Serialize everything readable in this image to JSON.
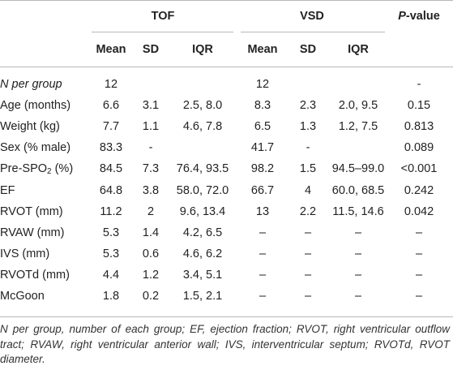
{
  "groups": {
    "tof": "TOF",
    "vsd": "VSD",
    "pvalue_p": "P",
    "pvalue_rest": "-value"
  },
  "subheaders": {
    "mean": "Mean",
    "sd": "SD",
    "iqr": "IQR"
  },
  "rows": [
    {
      "label": "N per group",
      "label_italic": true,
      "tof_mean": "12",
      "tof_sd": "",
      "tof_iqr": "",
      "vsd_mean": "12",
      "vsd_sd": "",
      "vsd_iqr": "",
      "p": "-"
    },
    {
      "label": "Age (months)",
      "tof_mean": "6.6",
      "tof_sd": "3.1",
      "tof_iqr": "2.5, 8.0",
      "vsd_mean": "8.3",
      "vsd_sd": "2.3",
      "vsd_iqr": "2.0, 9.5",
      "p": "0.15"
    },
    {
      "label": "Weight (kg)",
      "tof_mean": "7.7",
      "tof_sd": "1.1",
      "tof_iqr": "4.6, 7.8",
      "vsd_mean": "6.5",
      "vsd_sd": "1.3",
      "vsd_iqr": "1.2, 7.5",
      "p": "0.813"
    },
    {
      "label": "Sex (% male)",
      "tof_mean": "83.3",
      "tof_sd": "-",
      "tof_iqr": "",
      "vsd_mean": "41.7",
      "vsd_sd": "-",
      "vsd_iqr": "",
      "p": "0.089"
    },
    {
      "label": "Pre-SPO",
      "label_sub": "2",
      "label_tail": " (%)",
      "tof_mean": "84.5",
      "tof_sd": "7.3",
      "tof_iqr": "76.4, 93.5",
      "vsd_mean": "98.2",
      "vsd_sd": "1.5",
      "vsd_iqr": "94.5–99.0",
      "p": "<0.001"
    },
    {
      "label": "EF",
      "tof_mean": "64.8",
      "tof_sd": "3.8",
      "tof_iqr": "58.0, 72.0",
      "vsd_mean": "66.7",
      "vsd_sd": "4",
      "vsd_iqr": "60.0, 68.5",
      "p": "0.242"
    },
    {
      "label": "RVOT (mm)",
      "tof_mean": "11.2",
      "tof_sd": "2",
      "tof_iqr": "9.6, 13.4",
      "vsd_mean": "13",
      "vsd_sd": "2.2",
      "vsd_iqr": "11.5, 14.6",
      "p": "0.042"
    },
    {
      "label": "RVAW (mm)",
      "tof_mean": "5.3",
      "tof_sd": "1.4",
      "tof_iqr": "4.2, 6.5",
      "vsd_mean": "–",
      "vsd_sd": "–",
      "vsd_iqr": "–",
      "p": "–"
    },
    {
      "label": "IVS (mm)",
      "tof_mean": "5.3",
      "tof_sd": "0.6",
      "tof_iqr": "4.6, 6.2",
      "vsd_mean": "–",
      "vsd_sd": "–",
      "vsd_iqr": "–",
      "p": "–"
    },
    {
      "label": "RVOTd (mm)",
      "tof_mean": "4.4",
      "tof_sd": "1.2",
      "tof_iqr": "3.4, 5.1",
      "vsd_mean": "–",
      "vsd_sd": "–",
      "vsd_iqr": "–",
      "p": "–"
    },
    {
      "label": "McGoon",
      "tof_mean": "1.8",
      "tof_sd": "0.2",
      "tof_iqr": "1.5, 2.1",
      "vsd_mean": "–",
      "vsd_sd": "–",
      "vsd_iqr": "–",
      "p": "–"
    }
  ],
  "footnote": "N per group, number of each group; EF, ejection fraction; RVOT, right ventricular outflow tract; RVAW, right ventricular anterior wall; IVS, interventricular septum; RVOTd, RVOT diameter."
}
